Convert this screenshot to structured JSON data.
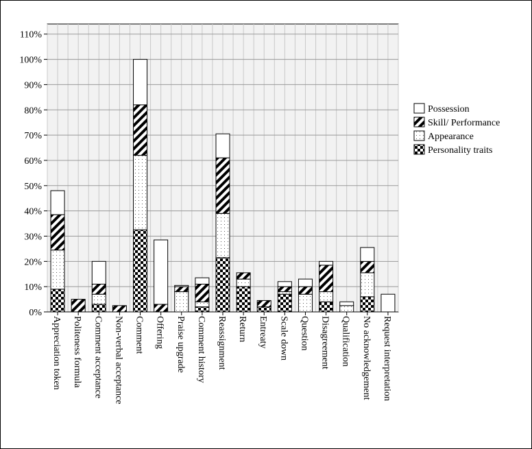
{
  "chart_data": {
    "type": "stacked_bar",
    "categories": [
      "Appreciation token",
      "Politeness formula",
      "Comment acceptance",
      "Non-verbal acceptance",
      "Comment",
      "Offering",
      "Praise upgrade",
      "Comment history",
      "Reassignment",
      "Return",
      "Entreaty",
      "Scale down",
      "Question",
      "Disagreement",
      "Qualification",
      "No acknowledgement",
      "Request interpretation"
    ],
    "series": [
      {
        "name": "Personality traits",
        "pattern": "checker",
        "color": "#000000",
        "values": [
          9,
          0,
          3,
          0,
          32.5,
          0,
          0,
          2,
          21.5,
          10,
          2,
          7,
          0,
          4,
          0,
          6,
          0
        ]
      },
      {
        "name": "Appearance",
        "pattern": "dots",
        "color": "#000000",
        "values": [
          15.5,
          0,
          4,
          0,
          29.5,
          0,
          8,
          2,
          17.5,
          3,
          0,
          1,
          7,
          4,
          2.5,
          9.5,
          0
        ]
      },
      {
        "name": "Skill/ Performance",
        "pattern": "diagonal",
        "color": "#000000",
        "values": [
          14,
          5,
          4,
          2.5,
          20,
          3,
          2,
          7,
          22,
          2.5,
          2.5,
          2,
          3,
          10.5,
          0,
          4.5,
          0
        ]
      },
      {
        "name": "Possession",
        "pattern": "none",
        "color": "#000000",
        "values": [
          9.5,
          0,
          9,
          0,
          18,
          25.5,
          0.5,
          2.5,
          9.5,
          0,
          0,
          2,
          3,
          1.5,
          1.5,
          5.5,
          7
        ]
      }
    ],
    "ylim": [
      0,
      114
    ],
    "yticks": [
      {
        "value": 0,
        "label": "0%"
      },
      {
        "value": 10,
        "label": "10%"
      },
      {
        "value": 20,
        "label": "20%"
      },
      {
        "value": 30,
        "label": "30%"
      },
      {
        "value": 40,
        "label": "40%"
      },
      {
        "value": 50,
        "label": "50%"
      },
      {
        "value": 60,
        "label": "60%"
      },
      {
        "value": 70,
        "label": "70%"
      },
      {
        "value": 80,
        "label": "80%"
      },
      {
        "value": 90,
        "label": "90%"
      },
      {
        "value": 100,
        "label": "100%"
      },
      {
        "value": 110,
        "label": "110%"
      }
    ],
    "grid": true,
    "legend": "right"
  }
}
